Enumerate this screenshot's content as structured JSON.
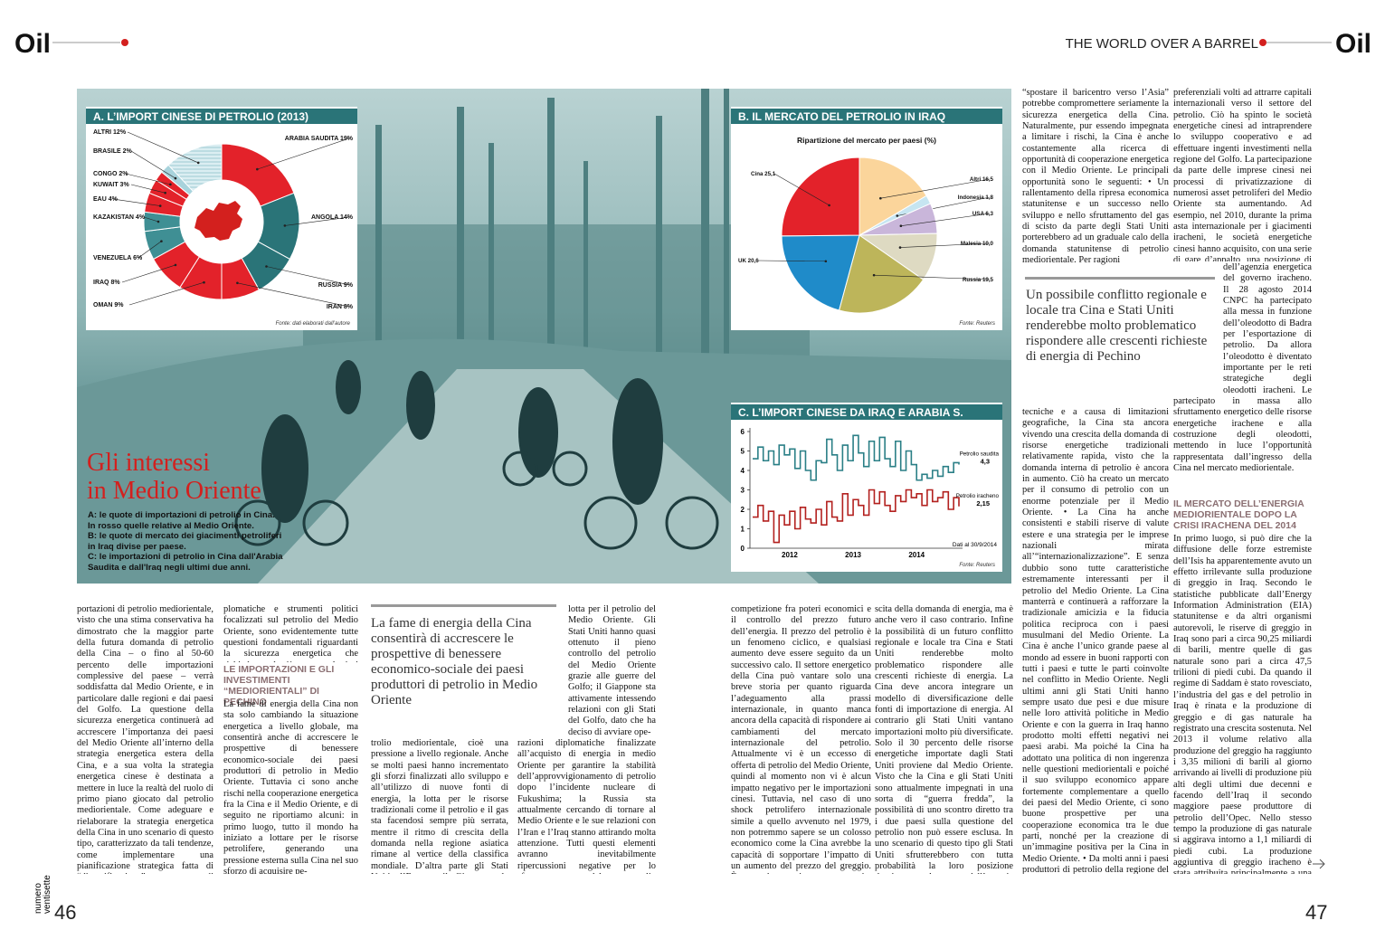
{
  "header": {
    "logo_left": "Oil",
    "logo_right": "Oil",
    "section": "THE WORLD OVER A BARREL",
    "issue": "numero ventisette",
    "page_left": "46",
    "page_right": "47"
  },
  "article": {
    "title_lines": [
      "Gli interessi",
      "in Medio Oriente"
    ],
    "caption_lines": [
      "A: le quote di importazioni di petrolio in Cina.",
      "In rosso quelle relative al Medio Oriente.",
      "B: le quote di mercato dei giacimenti petroliferi",
      "in Iraq divise per paese.",
      "C: le importazioni di petrolio in Cina dall'Arabia",
      "Saudita e dall'Iraq negli ultimi due anni."
    ],
    "pullquotes": [
      "La fame di energia della Cina consentirà di accrescere le prospettive di benessere economico-sociale dei paesi produttori di petrolio in Medio Oriente",
      "Un possibile conflitto regionale e locale tra Cina e Stati Uniti renderebbe molto problematico rispondere alle crescenti richieste di energia di Pechino"
    ],
    "headings": [
      "LE IMPORTAZIONI E GLI INVESTIMENTI “MEDIORIENTALI” DI PECHINO",
      "IL MERCATO DELL’ENERGIA MEDIORIENTALE DOPO LA CRISI IRACHENA DEL 2014"
    ],
    "blocks": [
      "portazioni di petrolio mediorientale, visto che una stima conservativa ha dimostrato che la maggior parte della futura domanda di petrolio della Cina – o fino al 50-60 percento delle importazioni complessive del paese – verrà soddisfatta dal Medio Oriente, e in particolare dalle regioni e dai paesi del Golfo. La questione della sicurezza energetica continuerà ad accrescere l’importanza dei paesi del Medio Oriente all’interno della strategia energetica estera della Cina, e a sua volta la strategia energetica cinese è destinata a mettere in luce la realtà del ruolo di primo piano giocato dal petrolio mediorientale. Come adeguare e rielaborare la strategia energetica della Cina in uno scenario di questo tipo, caratterizzato da tali tendenze, come implementare una pianificazione strategica fatta di “diversificazione” e di “intensificazione”, come sviluppare strategie politiche, economiche, di-",
      "plomatiche e strumenti politici focalizzati sul petrolio del Medio Oriente, sono evidentemente tutte questioni fondamentali riguardanti la sicurezza energetica che richiedono al più presto ulteriori approfondimenti.",
      "La fame di energia della Cina non sta solo cambiando la situazione energetica a livello globale, ma consentirà anche di accrescere le prospettive di benessere economico-sociale dei paesi produttori di petrolio in Medio Oriente. Tuttavia ci sono anche rischi nella cooperazione energetica fra la Cina e il Medio Oriente, e di seguito ne riportiamo alcuni: in primo luogo, tutto il mondo ha iniziato a lottare per le risorse petrolifere, generando una pressione esterna sulla Cina nel suo sforzo di acquisire pe-",
      "trolio mediorientale, cioè una pressione a livello regionale. Anche se molti paesi hanno incrementato gli sforzi finalizzati allo sviluppo e all’utilizzo di nuove fonti di energia, la lotta per le risorse tradizionali come il petrolio e il gas sta facendosi sempre più serrata, mentre il ritmo di crescita della domanda nella regione asiatica rimane al vertice della classifica mondiale. D’altra parte gli Stati Uniti, l’Europa, il Giappone, la Russia e altri paesi hanno intensificato la",
      "lotta per il petrolio del Medio Oriente. Gli Stati Uniti hanno quasi ottenuto il pieno controllo del petrolio del Medio Oriente grazie alle guerre del Golfo; il Giappone sta attivamente intessendo relazioni con gli Stati del Golfo, dato che ha deciso di avviare ope-",
      "razioni diplomatiche finalizzate all’acquisto di energia in medio Oriente per garantire la stabilità dell’approvvigionamento di petrolio dopo l’incidente nucleare di Fukushima; la Russia sta attualmente cercando di tornare al Medio Oriente e le sue relazioni con l’Iran e l’Iraq stanno attirando molta attenzione. Tutti questi elementi avranno inevitabilmente ripercussioni negative per lo sfruttamento del petrolio mediorientale da parte della Cina. In secondo luogo, la",
      "competizione fra poteri economici e il controllo del prezzo futuro dell’energia. Il prezzo del petrolio è un fenomeno ciclico, e qualsiasi aumento deve essere seguito da un successivo calo. Il settore energetico della Cina può vantare solo una breve storia per quanto riguarda l’adeguamento alla prassi internazionale, in quanto manca ancora della capacità di rispondere ai cambiamenti del mercato internazionale del petrolio. Attualmente vi è un eccesso di offerta di petrolio del Medio Oriente, quindi al momento non vi è alcun impatto negativo per le importazioni cinesi. Tuttavia, nel caso di uno shock petrolifero internazionale simile a quello avvenuto nel 1979, non potremmo sapere se un colosso economico come la Cina avrebbe la capacità di sopportare l’impatto di un aumento del prezzo del greggio. È vero che una impetuosa crescita economica dà luogo ad una rapida cre-",
      "scita della domanda di energia, ma è anche vero il caso contrario. Infine la possibilità di un futuro conflitto regionale e locale tra Cina e Stati Uniti renderebbe molto problematico rispondere alle crescenti richieste di energia. La Cina deve ancora integrare un modello di diversificazione delle fonti di importazione di energia. Al contrario gli Stati Uniti vantano importazioni molto più diversificate. Solo il 30 percento delle risorse energetiche importate dagli Stati Uniti proviene dal Medio Oriente. Visto che la Cina e gli Stati Uniti sono attualmente impegnati in una sorta di “guerra fredda”, la possibilità di uno scontro diretto tra i due paesi sulla questione del petrolio non può essere esclusa. In uno scenario di questo tipo gli Stati Uniti sfrutterebbero con tutta probabilità la loro posizione dominante nel settore dell’energia internazionale per opporsi alla Cina. La strategia degli Stati Uniti volta a",
      "“spostare il baricentro verso l’Asia” potrebbe compromettere seriamente la sicurezza energetica della Cina. Naturalmente, pur essendo impegnata a limitare i rischi, la Cina è anche costantemente alla ricerca di opportunità di cooperazione energetica con il Medio Oriente. Le principali opportunità sono le seguenti: • Un rallentamento della ripresa economica statunitense e un successo nello sviluppo e nello sfruttamento del gas di scisto da parte degli Stati Uniti porterebbero ad un graduale calo della domanda statunitense di petrolio mediorientale. Per ragioni",
      "preferenziali volti ad attrarre capitali internazionali verso il settore del petrolio. Ciò ha spinto le società energetiche cinesi ad intraprendere lo sviluppo cooperativo e ad effettuare ingenti investimenti nella regione del Golfo. La partecipazione da parte delle imprese cinesi nei processi di privatizzazione di numerosi asset petroliferi del Medio Oriente sta aumentando. Ad esempio, nel 2010, durante la prima asta internazionale per i giacimenti iracheni, le società energetiche cinesi hanno acquisito, con una serie di gare d’appalto, una posizione di rilievo all’interno",
      "dell’agenzia energetica del governo iracheno. Il 28 agosto 2014 CNPC ha partecipato alla messa in funzione dell’oleodotto di Badra per l’esportazione di petrolio. Da allora l’oleodotto è diventato importante per le reti strategiche degli oleodotti iracheni. Le società energetiche cinesi hanno evidentemente",
      "partecipato in massa allo sfruttamento energetico delle risorse energetiche irachene e alla costruzione degli oleodotti, mettendo in luce l’opportunità rappresentata dall’ingresso della Cina nel mercato mediorientale.",
      "tecniche e a causa di limitazioni geografiche, la Cina sta ancora vivendo una crescita della domanda di risorse energetiche tradizionali relativamente rapida, visto che la domanda interna di petrolio è ancora in aumento. Ciò ha creato un mercato per il consumo di petrolio con un enorme potenziale per il Medio Oriente. • La Cina ha anche consistenti e stabili riserve di valute estere e una strategia per le imprese nazionali mirata all’“internazionalizzazione”. E senza dubbio sono tutte caratteristiche estremamente interessanti per il petrolio del Medio Oriente. La Cina manterrà e continuerà a rafforzare la tradizionale amicizia e la fiducia politica reciproca con i paesi musulmani del Medio Oriente. La Cina è anche l’unico grande paese al mondo ad essere in buoni rapporti con tutti i paesi e tutte le parti coinvolte nel conflitto in Medio Oriente. Negli ultimi anni gli Stati Uniti hanno sempre usato due pesi e due misure nelle loro attività politiche in Medio Oriente e con la guerra in Iraq hanno prodotto molti effetti negativi nei paesi arabi. Ma poiché la Cina ha adottato una politica di non ingerenza nelle questioni mediorientali e poiché il suo sviluppo economico appare fortemente complementare a quello dei paesi del Medio Oriente, ci sono buone prospettive per una cooperazione economica tra le due parti, nonché per la creazione di un’immagine positiva per la Cina in Medio Oriente. • Da molti anni i paesi produttori di petrolio della regione del Golfo hanno attuato “la politica della porta aperta” con l’introduzione di regimi",
      "In primo luogo, si può dire che la diffusione delle forze estremiste dell’Isis ha apparentemente avuto un effetto irrilevante sulla produzione di greggio in Iraq. Secondo le statistiche pubblicate dall’Energy Information Administration (EIA) statunitense e da altri organismi autorevoli, le riserve di greggio in Iraq sono pari a circa 90,25 miliardi di barili, mentre quelle di gas naturale sono pari a circa 47,5 trilioni di piedi cubi. Da quando il regime di Saddam è stato rovesciato, l’industria del gas e del petrolio in Iraq è rinata e la produzione di greggio e di gas naturale ha registrato una crescita sostenuta. Nel 2013 il volume relativo alla produzione del greggio ha raggiunto i 3,35 milioni di barili al giorno arrivando ai livelli di produzione più alti degli ultimi due decenni e facendo dell’Iraq il secondo maggiore paese produttore di petrolio dell’Opec. Nello stesso tempo la produzione di gas naturale si aggirava intorno a 1,1 miliardi di piedi cubi. La produzione aggiuntiva di greggio iracheno è stata attribuita principalmente a una serie di grandi progetti petroliferi nel sud, compresi il giacimento petrolifero di Rumaila, quello di Halfaya, quello di West Qurna"
    ]
  },
  "chart_data": [
    {
      "type": "donut",
      "title": "A. L’IMPORT CINESE DI PETROLIO (2013)",
      "source": "Fonte: dati elaborati dall’autore",
      "labels": [
        "ARABIA SAUDITA 19%",
        "ANGOLA 14%",
        "RUSSIA 9%",
        "IRAN 8%",
        "OMAN 9%",
        "IRAQ 8%",
        "VENEZUELA 6%",
        "KAZAKISTAN 4%",
        "EAU 4%",
        "KUWAIT 3%",
        "CONGO 2%",
        "BRASILE 2%",
        "ALTRI 12%"
      ],
      "values": [
        19,
        14,
        9,
        8,
        9,
        8,
        6,
        4,
        4,
        3,
        2,
        2,
        12
      ],
      "colors": [
        "#e3222a",
        "#2a7478",
        "#2a7478",
        "#e3222a",
        "#e3222a",
        "#e3222a",
        "#3f8f94",
        "#3f8f94",
        "#e3222a",
        "#e3222a",
        "#e3222a",
        "#a8d3dc",
        "#dbeef2"
      ]
    },
    {
      "type": "pie",
      "title": "B. IL MERCATO DEL PETROLIO IN IRAQ",
      "subtitle": "Ripartizione del mercato per paesi (%)",
      "source": "Fonte: Reuters",
      "labels": [
        "Altri 16,5",
        "Indonesia 1,8",
        "USA 6,3",
        "Malesia 10,0",
        "Russia 19,5",
        "UK 20,6",
        "Cina 25,1"
      ],
      "values": [
        16.5,
        1.8,
        6.3,
        10.0,
        19.5,
        20.6,
        25.1
      ],
      "colors": [
        "#fbd59b",
        "#c6e5f1",
        "#c9b6da",
        "#dedac2",
        "#bdb55a",
        "#1f8bc9",
        "#e3222a"
      ]
    },
    {
      "type": "line",
      "title": "C. L’IMPORT CINESE DA IRAQ E ARABIA S.",
      "note": "Dati al 30/9/2014",
      "source": "Fonte: Reuters",
      "categories": [
        null,
        null,
        null,
        null,
        null,
        null,
        null,
        "2012",
        null,
        null,
        null,
        null,
        null,
        null,
        null,
        null,
        null,
        null,
        null,
        "2013",
        null,
        null,
        null,
        null,
        null,
        null,
        null,
        null,
        null,
        null,
        null,
        "2014",
        null,
        null,
        null,
        null,
        null,
        null,
        null,
        null
      ],
      "series": [
        {
          "name": "Petrolio saudita",
          "color": "#2a7f86",
          "values": [
            4.6,
            5.2,
            4.5,
            5.0,
            4.3,
            5.3,
            4.8,
            5.1,
            4.1,
            5.0,
            4.0,
            3.5,
            4.5,
            4.4,
            5.6,
            4.8,
            4.0,
            5.3,
            4.5,
            5.8,
            4.9,
            4.2,
            5.5,
            4.5,
            5.7,
            4.6,
            4.2,
            5.5,
            4.0,
            5.0,
            4.3,
            3.5,
            3.8,
            3.6,
            4.0,
            3.7,
            4.2,
            3.9,
            4.4,
            4.3
          ],
          "end_label": "4,3"
        },
        {
          "name": "Petrolio iracheno",
          "color": "#b3211f",
          "values": [
            1.6,
            2.2,
            1.4,
            1.9,
            0.3,
            1.7,
            1.2,
            1.9,
            1.0,
            2.1,
            1.5,
            1.3,
            2.0,
            1.2,
            2.4,
            1.6,
            1.4,
            2.8,
            1.7,
            2.5,
            2.2,
            1.7,
            3.0,
            2.3,
            2.9,
            2.2,
            1.9,
            2.7,
            2.4,
            3.0,
            2.6,
            2.8,
            2.2,
            3.0,
            2.4,
            2.6,
            2.9,
            2.0,
            2.6,
            2.15
          ],
          "end_label": "2,15"
        }
      ],
      "ylim": [
        0,
        6
      ],
      "yticks": [
        0,
        1,
        2,
        3,
        4,
        5,
        6
      ]
    }
  ]
}
